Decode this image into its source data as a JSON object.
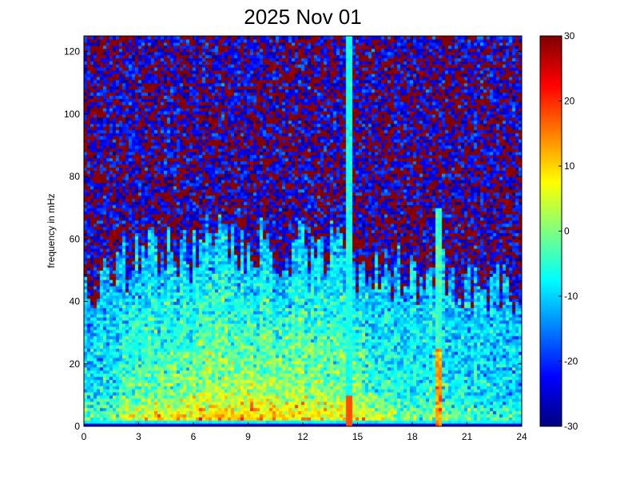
{
  "chart_data": {
    "type": "heatmap",
    "title": "2025 Nov 01",
    "xlabel": "",
    "ylabel": "frequency in mHz",
    "xlim": [
      0,
      24
    ],
    "ylim": [
      0,
      125
    ],
    "xticks": [
      "0",
      "3",
      "6",
      "9",
      "12",
      "15",
      "18",
      "21",
      "24"
    ],
    "yticks": [
      "0",
      "20",
      "40",
      "60",
      "80",
      "100",
      "120"
    ],
    "colorbar": {
      "colormap": "jet",
      "range": [
        -30,
        30
      ],
      "ticks": [
        "30",
        "20",
        "10",
        "0",
        "-10",
        "-20",
        "-30"
      ]
    },
    "features": {
      "high_power_band_mHz": [
        0,
        60
      ],
      "low_freq_peak_mHz": [
        0,
        10
      ],
      "vertical_streaks_hours": [
        14.6,
        19.4
      ],
      "background_dB": -25
    }
  }
}
